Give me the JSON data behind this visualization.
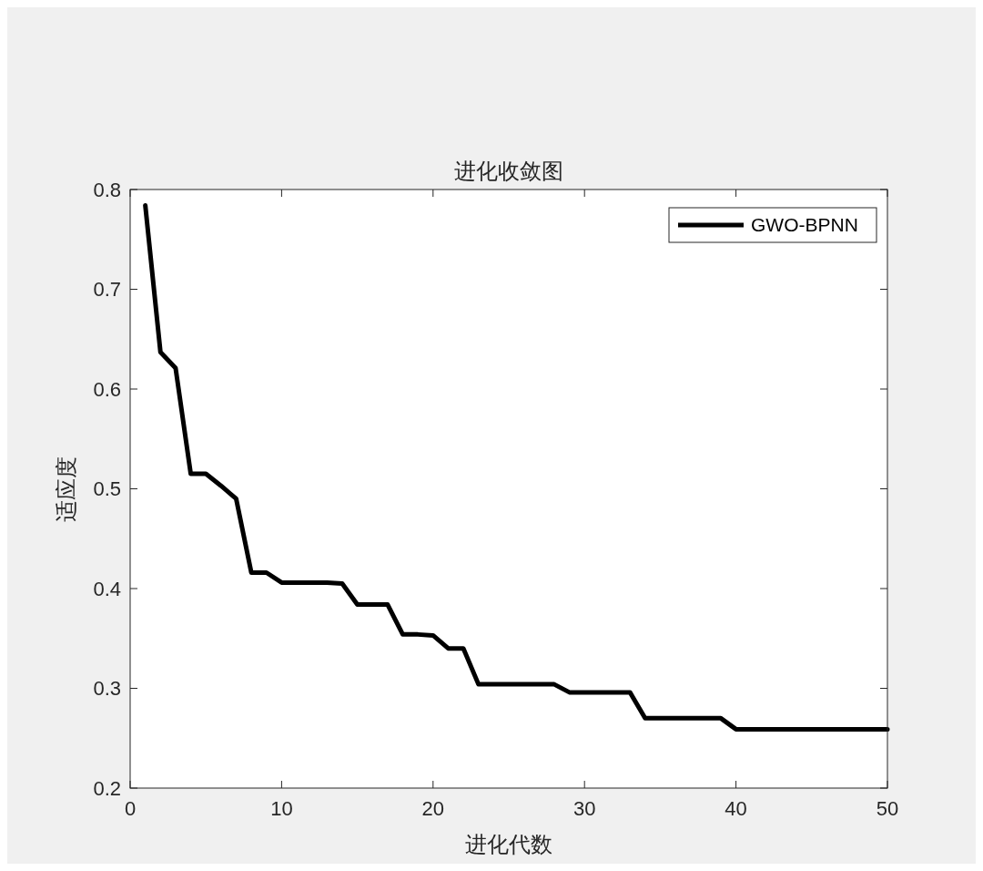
{
  "chart_data": {
    "type": "line",
    "title": "进化收敛图",
    "xlabel": "进化代数",
    "ylabel": "适应度",
    "x": [
      1,
      2,
      3,
      4,
      5,
      6,
      7,
      8,
      9,
      10,
      11,
      12,
      13,
      14,
      15,
      16,
      17,
      18,
      19,
      20,
      21,
      22,
      23,
      24,
      25,
      26,
      27,
      28,
      29,
      30,
      31,
      32,
      33,
      34,
      35,
      36,
      37,
      38,
      39,
      40,
      41,
      42,
      43,
      44,
      45,
      46,
      47,
      48,
      49,
      50
    ],
    "series": [
      {
        "name": "GWO-BPNN",
        "color": "#000000",
        "values": [
          0.784,
          0.637,
          0.621,
          0.515,
          0.515,
          0.503,
          0.49,
          0.416,
          0.416,
          0.406,
          0.406,
          0.406,
          0.406,
          0.405,
          0.384,
          0.384,
          0.384,
          0.354,
          0.354,
          0.353,
          0.34,
          0.34,
          0.304,
          0.304,
          0.304,
          0.304,
          0.304,
          0.304,
          0.296,
          0.296,
          0.296,
          0.296,
          0.296,
          0.27,
          0.27,
          0.27,
          0.27,
          0.27,
          0.27,
          0.259,
          0.259,
          0.259,
          0.259,
          0.259,
          0.259,
          0.259,
          0.259,
          0.259,
          0.259,
          0.259
        ]
      }
    ],
    "xlim": [
      0,
      50
    ],
    "xticks": [
      0,
      10,
      20,
      30,
      40,
      50
    ],
    "ylim": [
      0.2,
      0.8
    ],
    "yticks": [
      0.2,
      0.3,
      0.4,
      0.5,
      0.6,
      0.7,
      0.8
    ],
    "legend": "top right",
    "grid": false,
    "marker": "none",
    "line_style": "solid"
  }
}
